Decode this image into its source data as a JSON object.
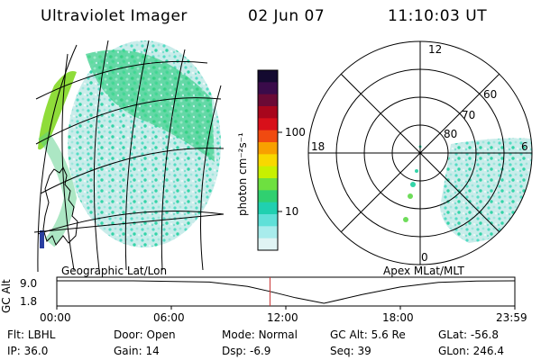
{
  "header": {
    "instrument": "Ultraviolet Imager",
    "date": "02 Jun 07",
    "time": "11:10:03 UT"
  },
  "colorbar": {
    "unit_label": "photon cm⁻²s⁻¹",
    "ticks": [
      "100",
      "10"
    ],
    "colors": [
      "#140a30",
      "#3a0b4a",
      "#6a0a35",
      "#a8061c",
      "#d8101a",
      "#f04a10",
      "#f8a000",
      "#f8d800",
      "#c8f000",
      "#6ee040",
      "#30d070",
      "#20d0b0",
      "#60e0d8",
      "#a8ecec",
      "#e0f4f4"
    ]
  },
  "left_map": {
    "label": "Geographic Lat/Lon"
  },
  "polar_map": {
    "label": "Apex  MLat/MLT",
    "mlt_labels": {
      "top": "12",
      "left": "18",
      "right": "6",
      "bottom": "0"
    },
    "lat_labels": [
      "60",
      "70",
      "80"
    ]
  },
  "altitude_plot": {
    "ylabel": "GC Alt",
    "y_ticks": [
      "9.0",
      "1.8"
    ],
    "x_ticks": [
      "00:00",
      "06:00",
      "12:00",
      "18:00",
      "23:59"
    ],
    "x_hours": [
      0,
      6,
      12,
      18,
      24
    ],
    "current_hour": 11.17,
    "y_range": [
      1.8,
      9.0
    ],
    "altitude_series": [
      {
        "h": 0,
        "alt": 9.0
      },
      {
        "h": 4,
        "alt": 9.0
      },
      {
        "h": 8,
        "alt": 8.6
      },
      {
        "h": 10,
        "alt": 7.2
      },
      {
        "h": 11.17,
        "alt": 5.6
      },
      {
        "h": 12.5,
        "alt": 3.6
      },
      {
        "h": 14,
        "alt": 1.8
      },
      {
        "h": 16,
        "alt": 4.6
      },
      {
        "h": 18,
        "alt": 7.0
      },
      {
        "h": 20,
        "alt": 8.5
      },
      {
        "h": 22,
        "alt": 8.9
      },
      {
        "h": 24,
        "alt": 9.0
      }
    ]
  },
  "info": {
    "row1": [
      {
        "label": "Flt:",
        "value": "LBHL"
      },
      {
        "label": "Door:",
        "value": "Open"
      },
      {
        "label": "Mode:",
        "value": "Normal"
      },
      {
        "label": "GC Alt:",
        "value": "5.6 Re"
      },
      {
        "label": "GLat:",
        "value": "-56.8"
      }
    ],
    "row2": [
      {
        "label": "IP:",
        "value": "36.0"
      },
      {
        "label": "Gain:",
        "value": "14"
      },
      {
        "label": "Dsp:",
        "value": "  -6.9"
      },
      {
        "label": "Seq:",
        "value": "39"
      },
      {
        "label": "GLon:",
        "value": "246.4"
      }
    ]
  }
}
